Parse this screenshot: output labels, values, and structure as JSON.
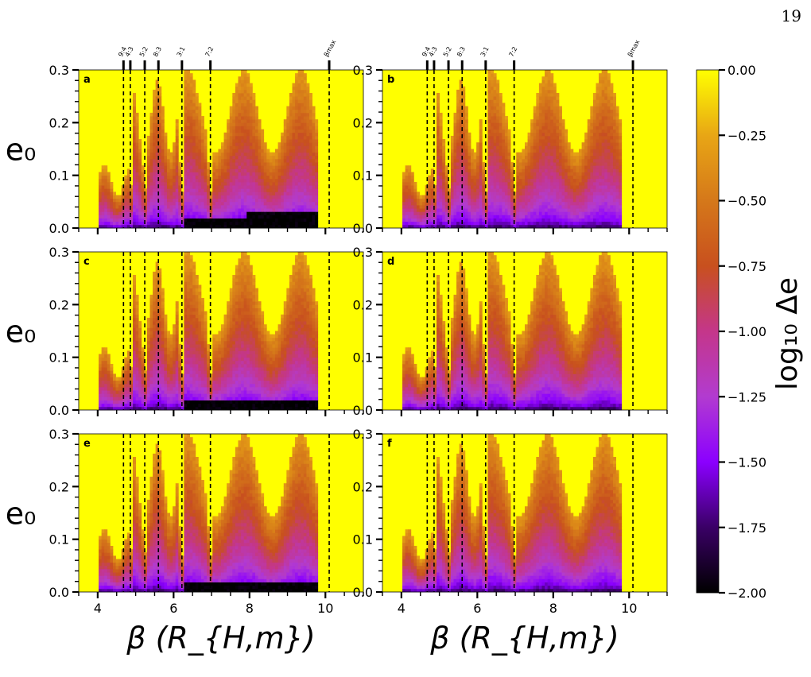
{
  "page_number": "19",
  "caption_fragment": "",
  "chart_data": {
    "type": "heatmap",
    "x_range": [
      3.5,
      11.0
    ],
    "y_range": [
      0.0,
      0.3
    ],
    "x_ticks": [
      4,
      6,
      8,
      10
    ],
    "y_ticks": [
      0.0,
      0.1,
      0.2,
      0.3
    ],
    "xlabel": "β (R_{H,m})",
    "ylabel": "e₀",
    "resonances": [
      {
        "label": "9:4",
        "x": 4.68
      },
      {
        "label": "4:3",
        "x": 4.86
      },
      {
        "label": "5:2",
        "x": 5.24
      },
      {
        "label": "8:3",
        "x": 5.6
      },
      {
        "label": "3:1",
        "x": 6.22
      },
      {
        "label": "7:2",
        "x": 6.97
      },
      {
        "label": "βmax",
        "x": 10.1
      }
    ],
    "colorbar": {
      "label": "log₁₀ Δe",
      "range": [
        -2.0,
        0.0
      ],
      "ticks": [
        "0.00",
        "−0.25",
        "−0.50",
        "−0.75",
        "−1.00",
        "−1.25",
        "−1.50",
        "−1.75",
        "−2.00"
      ],
      "colors": [
        "#000000",
        "#3a0066",
        "#8b00ff",
        "#b23bd0",
        "#c4368a",
        "#c8501e",
        "#d5781a",
        "#e8a615",
        "#ffff00"
      ]
    },
    "panels": [
      {
        "label": "a",
        "beta_min": 4.0,
        "beta_cut": 9.8,
        "deep_min": true
      },
      {
        "label": "b",
        "beta_min": 4.0,
        "beta_cut": 9.8,
        "deep_min": false
      },
      {
        "label": "c",
        "beta_min": 4.0,
        "beta_cut": 9.8,
        "deep_min": true
      },
      {
        "label": "d",
        "beta_min": 4.0,
        "beta_cut": 9.8,
        "deep_min": false
      },
      {
        "label": "e",
        "beta_min": 4.0,
        "beta_cut": 9.8,
        "deep_min": true
      },
      {
        "label": "f",
        "beta_min": 4.0,
        "beta_cut": 9.8,
        "deep_min": false
      }
    ]
  }
}
